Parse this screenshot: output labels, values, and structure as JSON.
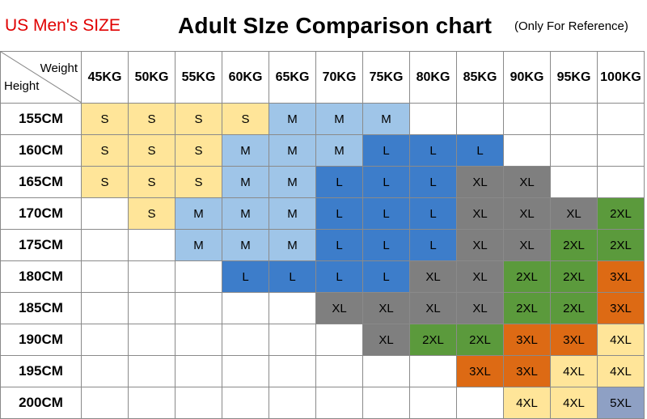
{
  "header": {
    "top_left": "US Men's SIZE",
    "title": "Adult SIze Comparison chart",
    "note": "(Only For Reference)"
  },
  "chart_data": {
    "type": "table",
    "corner_column_label": "Weight",
    "corner_row_label": "Height",
    "columns": [
      "45KG",
      "50KG",
      "55KG",
      "60KG",
      "65KG",
      "70KG",
      "75KG",
      "80KG",
      "85KG",
      "90KG",
      "95KG",
      "100KG"
    ],
    "rows": [
      {
        "height": "155CM",
        "cells": [
          "S",
          "S",
          "S",
          "S",
          "M",
          "M",
          "M",
          "",
          "",
          "",
          "",
          ""
        ]
      },
      {
        "height": "160CM",
        "cells": [
          "S",
          "S",
          "S",
          "M",
          "M",
          "M",
          "L",
          "L",
          "L",
          "",
          "",
          ""
        ]
      },
      {
        "height": "165CM",
        "cells": [
          "S",
          "S",
          "S",
          "M",
          "M",
          "L",
          "L",
          "L",
          "XL",
          "XL",
          "",
          ""
        ]
      },
      {
        "height": "170CM",
        "cells": [
          "",
          "S",
          "M",
          "M",
          "M",
          "L",
          "L",
          "L",
          "XL",
          "XL",
          "XL",
          "2XL"
        ]
      },
      {
        "height": "175CM",
        "cells": [
          "",
          "",
          "M",
          "M",
          "M",
          "L",
          "L",
          "L",
          "XL",
          "XL",
          "2XL",
          "2XL"
        ]
      },
      {
        "height": "180CM",
        "cells": [
          "",
          "",
          "",
          "L",
          "L",
          "L",
          "L",
          "XL",
          "XL",
          "2XL",
          "2XL",
          "3XL"
        ]
      },
      {
        "height": "185CM",
        "cells": [
          "",
          "",
          "",
          "",
          "",
          "XL",
          "XL",
          "XL",
          "XL",
          "2XL",
          "2XL",
          "3XL"
        ]
      },
      {
        "height": "190CM",
        "cells": [
          "",
          "",
          "",
          "",
          "",
          "",
          "XL",
          "2XL",
          "2XL",
          "3XL",
          "3XL",
          "4XL"
        ]
      },
      {
        "height": "195CM",
        "cells": [
          "",
          "",
          "",
          "",
          "",
          "",
          "",
          "",
          "3XL",
          "3XL",
          "4XL",
          "4XL"
        ]
      },
      {
        "height": "200CM",
        "cells": [
          "",
          "",
          "",
          "",
          "",
          "",
          "",
          "",
          "",
          "4XL",
          "4XL",
          "5XL"
        ]
      }
    ],
    "size_colors": {
      "S": "#ffe599",
      "M": "#9fc5e8",
      "L": "#3d7dca",
      "XL": "#7f7f7f",
      "2XL": "#5b9a3c",
      "3XL": "#dd6a14",
      "4XL": "#ffe599",
      "5XL": "#8ea0c4"
    }
  }
}
